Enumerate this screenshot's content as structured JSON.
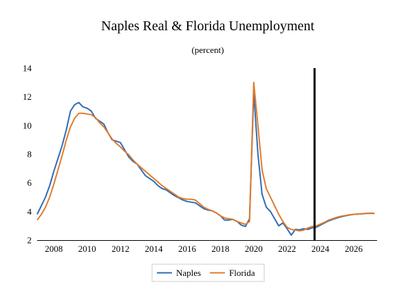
{
  "chart_data": {
    "type": "line",
    "title": "Naples Real & Florida Unemployment",
    "subtitle": "(percent)",
    "xlabel": "",
    "ylabel": "",
    "xlim": [
      2007.0,
      2027.4
    ],
    "ylim": [
      2,
      14
    ],
    "x_ticks": [
      "2008",
      "2010",
      "2012",
      "2014",
      "2016",
      "2018",
      "2020",
      "2022",
      "2024",
      "2026"
    ],
    "y_ticks": [
      "2",
      "4",
      "6",
      "8",
      "10",
      "12",
      "14"
    ],
    "grid": false,
    "legend_position": "bottom",
    "forecast_marker_x": 2023.65,
    "series": [
      {
        "name": "Naples",
        "color": "#2e6cb5",
        "points": [
          [
            2007.0,
            3.8
          ],
          [
            2007.25,
            4.4
          ],
          [
            2007.5,
            5.0
          ],
          [
            2007.75,
            5.8
          ],
          [
            2008.0,
            6.8
          ],
          [
            2008.25,
            7.7
          ],
          [
            2008.5,
            8.6
          ],
          [
            2008.75,
            9.7
          ],
          [
            2009.0,
            11.0
          ],
          [
            2009.25,
            11.45
          ],
          [
            2009.5,
            11.6
          ],
          [
            2009.75,
            11.3
          ],
          [
            2010.0,
            11.2
          ],
          [
            2010.25,
            11.0
          ],
          [
            2010.5,
            10.5
          ],
          [
            2010.75,
            10.3
          ],
          [
            2011.0,
            10.1
          ],
          [
            2011.25,
            9.5
          ],
          [
            2011.5,
            9.0
          ],
          [
            2011.75,
            8.9
          ],
          [
            2012.0,
            8.8
          ],
          [
            2012.25,
            8.3
          ],
          [
            2012.5,
            7.8
          ],
          [
            2012.75,
            7.5
          ],
          [
            2013.0,
            7.3
          ],
          [
            2013.25,
            6.9
          ],
          [
            2013.5,
            6.5
          ],
          [
            2013.75,
            6.3
          ],
          [
            2014.0,
            6.1
          ],
          [
            2014.25,
            5.8
          ],
          [
            2014.5,
            5.6
          ],
          [
            2014.75,
            5.5
          ],
          [
            2015.0,
            5.3
          ],
          [
            2015.25,
            5.1
          ],
          [
            2015.5,
            4.95
          ],
          [
            2015.75,
            4.8
          ],
          [
            2016.0,
            4.7
          ],
          [
            2016.25,
            4.65
          ],
          [
            2016.5,
            4.6
          ],
          [
            2016.75,
            4.4
          ],
          [
            2017.0,
            4.2
          ],
          [
            2017.25,
            4.1
          ],
          [
            2017.5,
            4.05
          ],
          [
            2017.75,
            3.9
          ],
          [
            2018.0,
            3.7
          ],
          [
            2018.25,
            3.4
          ],
          [
            2018.5,
            3.4
          ],
          [
            2018.75,
            3.45
          ],
          [
            2019.0,
            3.3
          ],
          [
            2019.25,
            3.05
          ],
          [
            2019.5,
            2.95
          ],
          [
            2019.75,
            3.5
          ],
          [
            2020.0,
            12.3
          ],
          [
            2020.25,
            8.0
          ],
          [
            2020.5,
            5.2
          ],
          [
            2020.75,
            4.3
          ],
          [
            2021.0,
            4.0
          ],
          [
            2021.25,
            3.5
          ],
          [
            2021.5,
            3.0
          ],
          [
            2021.75,
            3.2
          ],
          [
            2022.0,
            2.8
          ],
          [
            2022.25,
            2.35
          ],
          [
            2022.5,
            2.75
          ],
          [
            2022.75,
            2.72
          ],
          [
            2023.0,
            2.8
          ],
          [
            2023.25,
            2.75
          ],
          [
            2023.5,
            2.85
          ],
          [
            2023.75,
            2.9
          ],
          [
            2024.0,
            3.05
          ],
          [
            2024.25,
            3.2
          ],
          [
            2024.5,
            3.35
          ],
          [
            2024.75,
            3.45
          ],
          [
            2025.0,
            3.55
          ],
          [
            2025.25,
            3.63
          ],
          [
            2025.5,
            3.7
          ],
          [
            2025.75,
            3.75
          ],
          [
            2026.0,
            3.8
          ],
          [
            2026.25,
            3.82
          ],
          [
            2026.5,
            3.84
          ],
          [
            2026.75,
            3.86
          ],
          [
            2027.0,
            3.87
          ],
          [
            2027.25,
            3.86
          ]
        ]
      },
      {
        "name": "Florida",
        "color": "#e07b2c",
        "points": [
          [
            2007.0,
            3.4
          ],
          [
            2007.25,
            3.8
          ],
          [
            2007.5,
            4.3
          ],
          [
            2007.75,
            5.0
          ],
          [
            2008.0,
            5.9
          ],
          [
            2008.25,
            6.9
          ],
          [
            2008.5,
            7.9
          ],
          [
            2008.75,
            9.0
          ],
          [
            2009.0,
            9.9
          ],
          [
            2009.25,
            10.5
          ],
          [
            2009.5,
            10.85
          ],
          [
            2009.75,
            10.85
          ],
          [
            2010.0,
            10.8
          ],
          [
            2010.25,
            10.75
          ],
          [
            2010.5,
            10.55
          ],
          [
            2010.75,
            10.2
          ],
          [
            2011.0,
            9.9
          ],
          [
            2011.25,
            9.5
          ],
          [
            2011.5,
            9.05
          ],
          [
            2011.75,
            8.75
          ],
          [
            2012.0,
            8.5
          ],
          [
            2012.25,
            8.2
          ],
          [
            2012.5,
            7.95
          ],
          [
            2012.75,
            7.6
          ],
          [
            2013.0,
            7.3
          ],
          [
            2013.25,
            7.05
          ],
          [
            2013.5,
            6.8
          ],
          [
            2013.75,
            6.55
          ],
          [
            2014.0,
            6.3
          ],
          [
            2014.25,
            6.05
          ],
          [
            2014.5,
            5.8
          ],
          [
            2014.75,
            5.6
          ],
          [
            2015.0,
            5.4
          ],
          [
            2015.25,
            5.2
          ],
          [
            2015.5,
            5.0
          ],
          [
            2015.75,
            4.9
          ],
          [
            2016.0,
            4.85
          ],
          [
            2016.25,
            4.85
          ],
          [
            2016.5,
            4.8
          ],
          [
            2016.75,
            4.55
          ],
          [
            2017.0,
            4.3
          ],
          [
            2017.25,
            4.15
          ],
          [
            2017.5,
            4.05
          ],
          [
            2017.75,
            3.9
          ],
          [
            2018.0,
            3.7
          ],
          [
            2018.25,
            3.55
          ],
          [
            2018.5,
            3.5
          ],
          [
            2018.75,
            3.45
          ],
          [
            2019.0,
            3.3
          ],
          [
            2019.25,
            3.2
          ],
          [
            2019.5,
            3.1
          ],
          [
            2019.75,
            3.3
          ],
          [
            2020.0,
            13.0
          ],
          [
            2020.25,
            10.0
          ],
          [
            2020.5,
            6.9
          ],
          [
            2020.75,
            5.6
          ],
          [
            2021.0,
            5.0
          ],
          [
            2021.25,
            4.4
          ],
          [
            2021.5,
            3.8
          ],
          [
            2021.75,
            3.3
          ],
          [
            2022.0,
            2.9
          ],
          [
            2022.25,
            2.75
          ],
          [
            2022.5,
            2.7
          ],
          [
            2022.75,
            2.65
          ],
          [
            2023.0,
            2.7
          ],
          [
            2023.25,
            2.85
          ],
          [
            2023.5,
            2.95
          ],
          [
            2023.75,
            3.0
          ],
          [
            2024.0,
            3.12
          ],
          [
            2024.25,
            3.25
          ],
          [
            2024.5,
            3.4
          ],
          [
            2024.75,
            3.5
          ],
          [
            2025.0,
            3.6
          ],
          [
            2025.25,
            3.67
          ],
          [
            2025.5,
            3.72
          ],
          [
            2025.75,
            3.77
          ],
          [
            2026.0,
            3.8
          ],
          [
            2026.25,
            3.82
          ],
          [
            2026.5,
            3.85
          ],
          [
            2026.75,
            3.87
          ],
          [
            2027.0,
            3.88
          ],
          [
            2027.25,
            3.87
          ]
        ]
      }
    ]
  }
}
